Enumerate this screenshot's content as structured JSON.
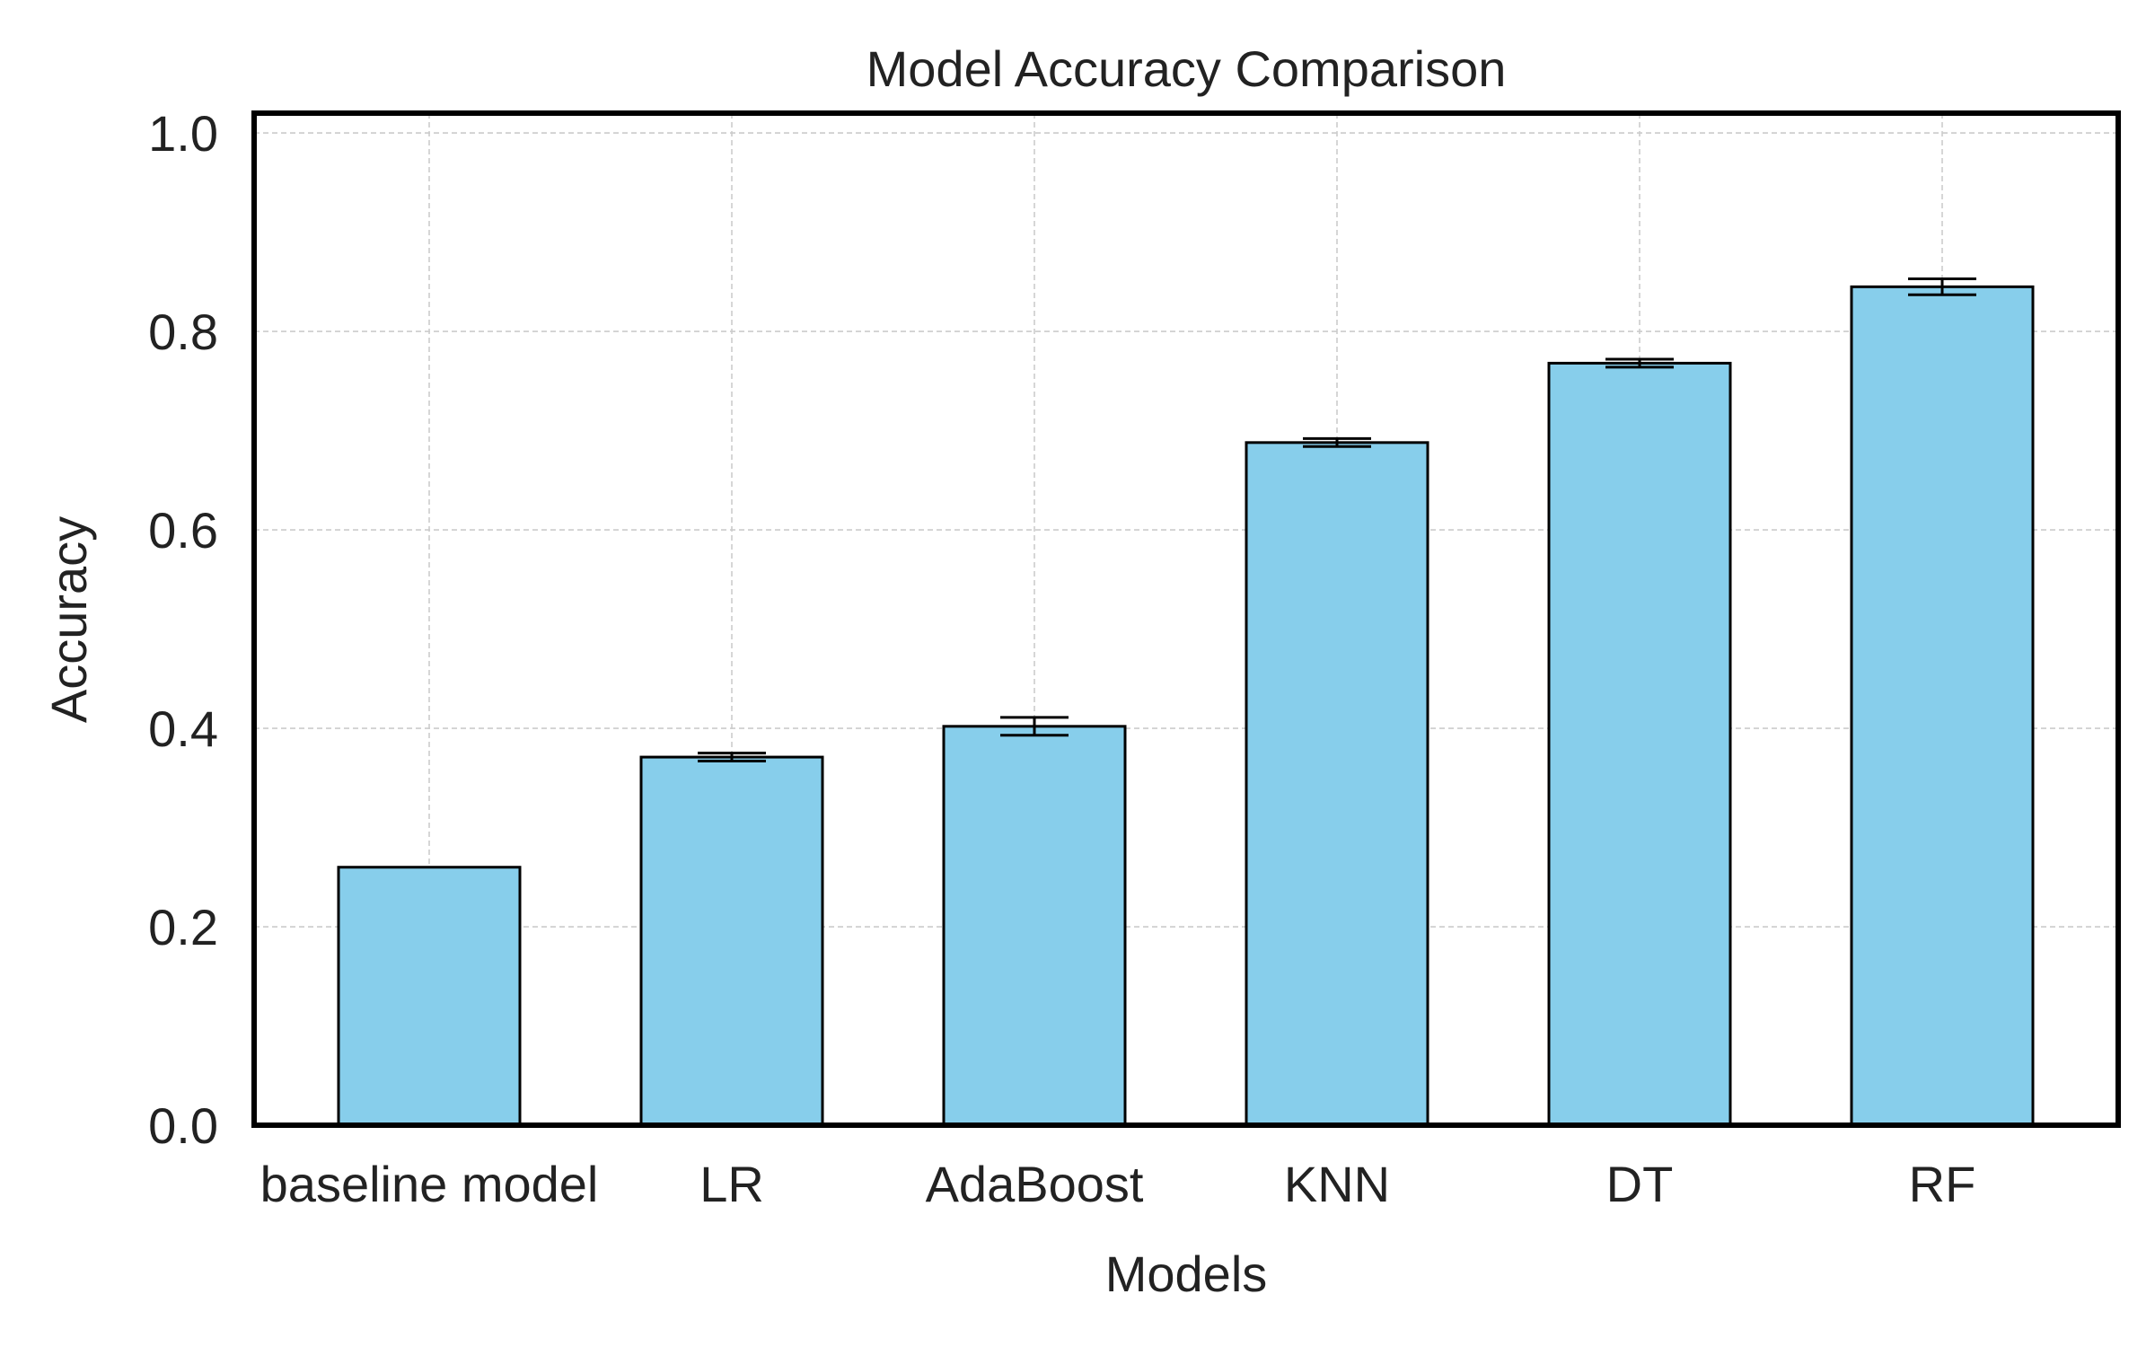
{
  "chart_data": {
    "type": "bar",
    "title": "Model Accuracy Comparison",
    "xlabel": "Models",
    "ylabel": "Accuracy",
    "categories": [
      "baseline model",
      "LR",
      "AdaBoost",
      "KNN",
      "DT",
      "RF"
    ],
    "values": [
      0.26,
      0.371,
      0.402,
      0.688,
      0.768,
      0.845
    ],
    "errors": [
      0.0,
      0.004,
      0.009,
      0.004,
      0.004,
      0.008
    ],
    "ylim": [
      0,
      1.02
    ],
    "yticks": [
      "0.0",
      "0.2",
      "0.4",
      "0.6",
      "0.8",
      "1.0"
    ],
    "grid": true,
    "bar_color": "#87CEEB",
    "edge_color": "#000000"
  }
}
